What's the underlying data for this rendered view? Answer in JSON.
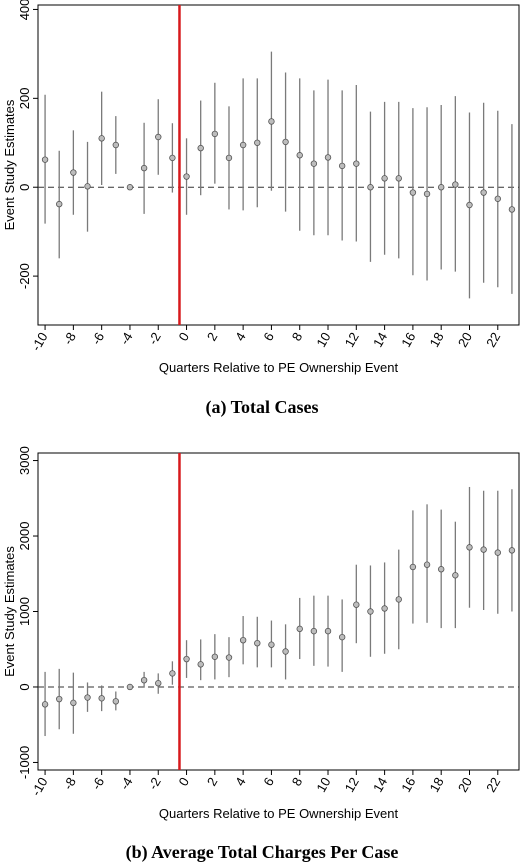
{
  "chart_data": [
    {
      "type": "scatter",
      "caption": "(a) Total Cases",
      "xlabel": "Quarters Relative to PE Ownership Event",
      "ylabel": "Event Study Estimates",
      "xlim": [
        -10.5,
        23.5
      ],
      "ylim": [
        -310,
        410
      ],
      "yticks": [
        -200,
        0,
        200,
        400
      ],
      "xticks": [
        -10,
        -8,
        -6,
        -4,
        -2,
        0,
        2,
        4,
        6,
        8,
        10,
        12,
        14,
        16,
        18,
        20,
        22
      ],
      "event_line_x": -0.5,
      "reference_y": 0,
      "x": [
        -10,
        -9,
        -8,
        -7,
        -6,
        -5,
        -4,
        -3,
        -2,
        -1,
        0,
        1,
        2,
        3,
        4,
        5,
        6,
        7,
        8,
        9,
        10,
        11,
        12,
        13,
        14,
        15,
        16,
        17,
        18,
        19,
        20,
        21,
        22,
        23
      ],
      "estimate": [
        62,
        -38,
        33,
        2,
        110,
        95,
        0,
        43,
        113,
        66,
        24,
        88,
        120,
        66,
        95,
        100,
        148,
        102,
        72,
        53,
        67,
        48,
        53,
        0,
        20,
        20,
        -12,
        -15,
        0,
        6,
        -40,
        -12,
        -26,
        -50
      ],
      "ci_low": [
        -82,
        -160,
        -62,
        -100,
        5,
        30,
        0,
        -60,
        28,
        -12,
        -62,
        -18,
        8,
        -50,
        -52,
        -45,
        -8,
        -55,
        -98,
        -108,
        -108,
        -120,
        -122,
        -168,
        -152,
        -160,
        -198,
        -210,
        -185,
        -190,
        -250,
        -215,
        -225,
        -240
      ],
      "ci_high": [
        208,
        82,
        128,
        102,
        215,
        160,
        0,
        145,
        198,
        144,
        110,
        195,
        235,
        182,
        245,
        245,
        305,
        258,
        245,
        218,
        242,
        218,
        230,
        170,
        192,
        192,
        178,
        180,
        185,
        205,
        168,
        190,
        172,
        142
      ]
    },
    {
      "type": "scatter",
      "caption": "(b) Average Total Charges Per Case",
      "xlabel": "Quarters Relative to PE Ownership Event",
      "ylabel": "Event Study Estimates",
      "xlim": [
        -10.5,
        23.5
      ],
      "ylim": [
        -1100,
        3100
      ],
      "yticks": [
        -1000,
        0,
        1000,
        2000,
        3000
      ],
      "xticks": [
        -10,
        -8,
        -6,
        -4,
        -2,
        0,
        2,
        4,
        6,
        8,
        10,
        12,
        14,
        16,
        18,
        20,
        22
      ],
      "event_line_x": -0.5,
      "reference_y": 0,
      "x": [
        -10,
        -9,
        -8,
        -7,
        -6,
        -5,
        -4,
        -3,
        -2,
        -1,
        0,
        1,
        2,
        3,
        4,
        5,
        6,
        7,
        8,
        9,
        10,
        11,
        12,
        13,
        14,
        15,
        16,
        17,
        18,
        19,
        20,
        21,
        22,
        23
      ],
      "estimate": [
        -230,
        -160,
        -210,
        -140,
        -150,
        -190,
        0,
        90,
        50,
        180,
        370,
        300,
        400,
        390,
        620,
        580,
        560,
        470,
        770,
        740,
        740,
        660,
        1090,
        1000,
        1040,
        1160,
        1590,
        1620,
        1560,
        1480,
        1850,
        1820,
        1780,
        1810
      ],
      "ci_low": [
        -650,
        -560,
        -620,
        -330,
        -320,
        -310,
        0,
        -10,
        -90,
        30,
        120,
        90,
        100,
        130,
        300,
        260,
        260,
        100,
        370,
        280,
        270,
        200,
        580,
        400,
        440,
        500,
        840,
        850,
        780,
        780,
        1050,
        1020,
        970,
        1000
      ],
      "ci_high": [
        200,
        240,
        190,
        60,
        20,
        -60,
        0,
        200,
        180,
        340,
        620,
        630,
        700,
        660,
        940,
        930,
        880,
        830,
        1180,
        1210,
        1210,
        1160,
        1620,
        1610,
        1650,
        1820,
        2340,
        2420,
        2350,
        2190,
        2650,
        2600,
        2600,
        2620
      ]
    }
  ]
}
